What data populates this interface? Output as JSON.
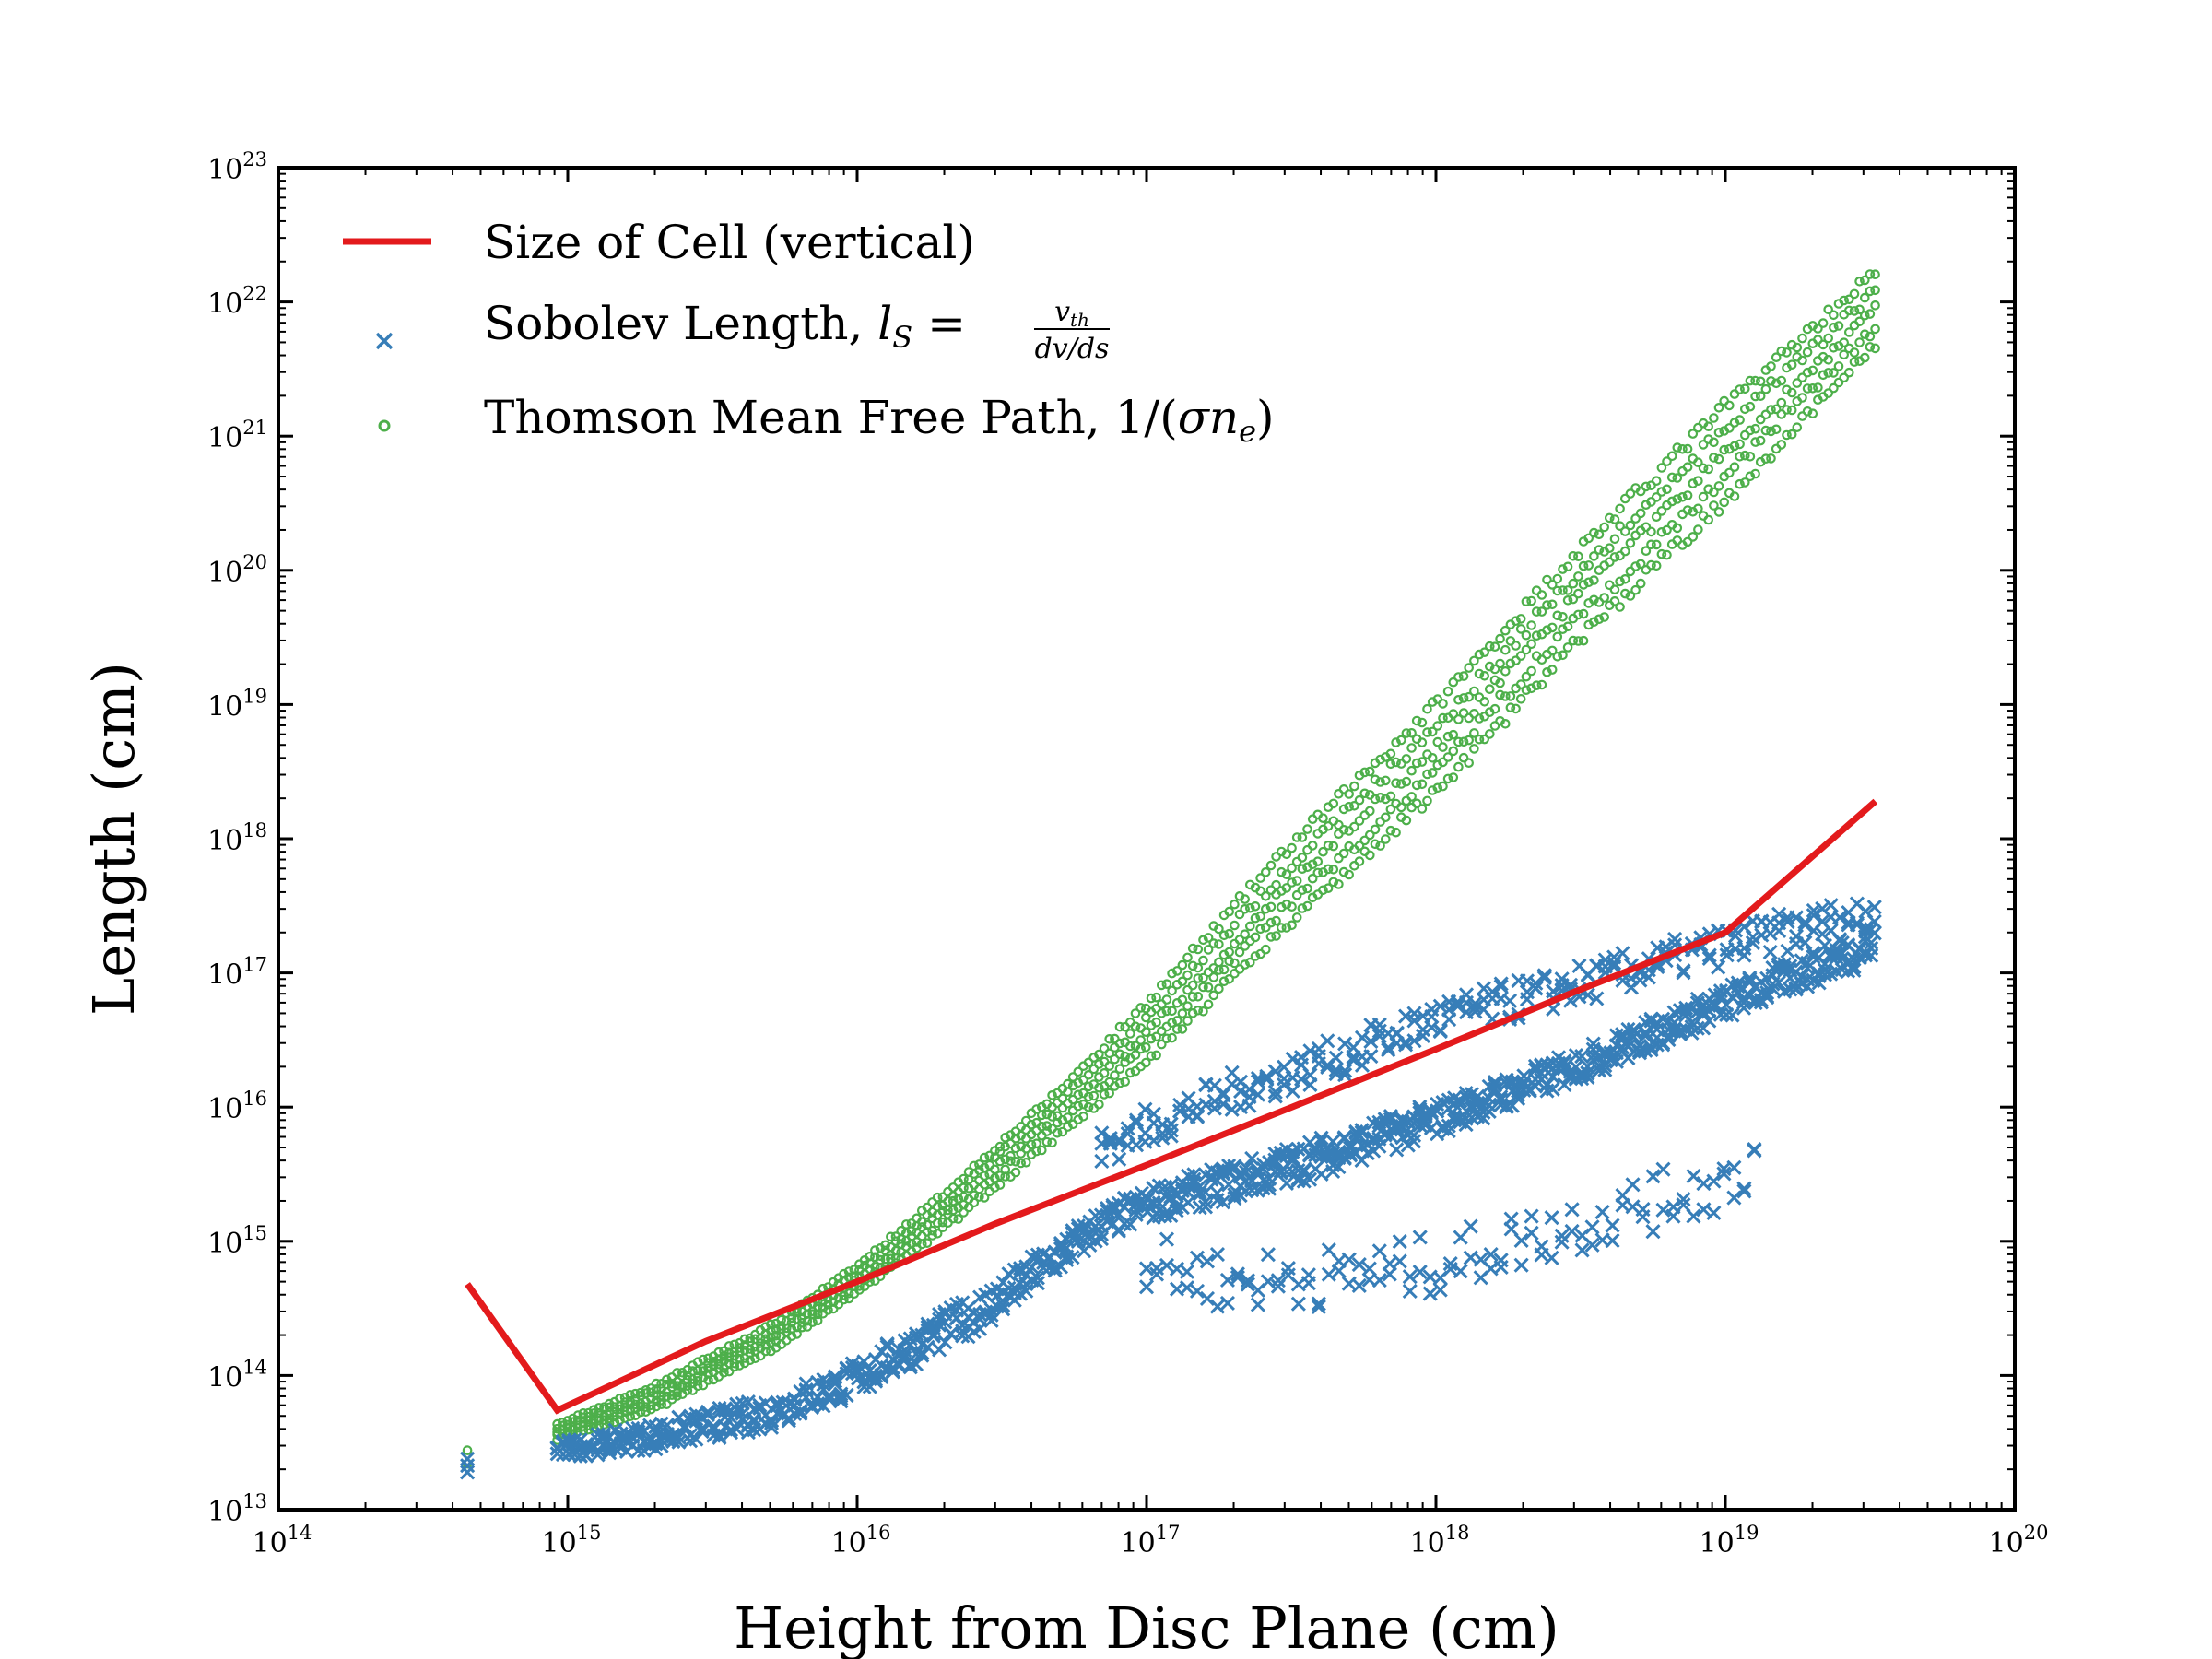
{
  "chart_data": {
    "type": "scatter",
    "xlabel": "Height from Disc Plane (cm)",
    "ylabel": "Length (cm)",
    "xscale": "log",
    "yscale": "log",
    "xlim": [
      100000000000000.0,
      1e+20
    ],
    "ylim": [
      10000000000000.0,
      1e+23
    ],
    "x_ticks": [
      {
        "base": "10",
        "exp": "14"
      },
      {
        "base": "10",
        "exp": "15"
      },
      {
        "base": "10",
        "exp": "16"
      },
      {
        "base": "10",
        "exp": "17"
      },
      {
        "base": "10",
        "exp": "18"
      },
      {
        "base": "10",
        "exp": "19"
      },
      {
        "base": "10",
        "exp": "20"
      }
    ],
    "y_ticks": [
      {
        "base": "10",
        "exp": "13"
      },
      {
        "base": "10",
        "exp": "14"
      },
      {
        "base": "10",
        "exp": "15"
      },
      {
        "base": "10",
        "exp": "16"
      },
      {
        "base": "10",
        "exp": "17"
      },
      {
        "base": "10",
        "exp": "18"
      },
      {
        "base": "10",
        "exp": "19"
      },
      {
        "base": "10",
        "exp": "20"
      },
      {
        "base": "10",
        "exp": "21"
      },
      {
        "base": "10",
        "exp": "22"
      },
      {
        "base": "10",
        "exp": "23"
      }
    ],
    "grid": false,
    "legend_position": "top-left",
    "legend": {
      "cell": "Size of Cell (vertical)",
      "sobolev_prefix": "Sobolev Length, ",
      "sobolev_lhs": "l",
      "sobolev_sub": "S",
      "sobolev_eq": " = ",
      "sobolev_num": "v",
      "sobolev_num_sub": "th",
      "sobolev_den": "dv/ds",
      "thomson_prefix": "Thomson Mean Free Path, 1/(",
      "thomson_sigma": "σn",
      "thomson_sub": "e",
      "thomson_suffix": ")"
    },
    "series": [
      {
        "name": "Size of Cell (vertical)",
        "type": "line",
        "color": "#e31a1c",
        "x": [
          450000000000000.0,
          920000000000000.0,
          3000000000000000.0,
          1e+16,
          3e+16,
          1e+17,
          3e+17,
          1e+18,
          3e+18,
          1e+19,
          3.3e+19
        ],
        "y": [
          480000000000000.0,
          55000000000000.0,
          180000000000000.0,
          500000000000000.0,
          1350000000000000.0,
          3700000000000000.0,
          9500000000000000.0,
          2.7e+16,
          7.2e+16,
          2e+17,
          1.9e+18
        ]
      },
      {
        "name": "Sobolev Length",
        "type": "scatter",
        "marker": "x",
        "color": "#377eb8",
        "x": [
          450000000000000.0,
          920000000000000.0,
          2000000000000000.0,
          5000000000000000.0,
          1e+16,
          3e+16,
          7e+16,
          1e+17,
          3e+17,
          1e+18,
          3e+18,
          1e+19,
          3.3e+19
        ],
        "y_low": [
          19000000000000.0,
          24000000000000.0,
          28000000000000.0,
          40000000000000.0,
          70000000000000.0,
          250000000000000.0,
          1000000000000000.0,
          1400000000000000.0,
          2500000000000000.0,
          6000000000000000.0,
          1.5e+16,
          4.5e+16,
          1.2e+17
        ],
        "y_high": [
          24000000000000.0,
          32000000000000.0,
          45000000000000.0,
          70000000000000.0,
          130000000000000.0,
          500000000000000.0,
          1800000000000000.0,
          2500000000000000.0,
          5000000000000000.0,
          1.1e+16,
          2.6e+16,
          8e+16,
          2.3e+17
        ],
        "upper_branch_x": [
          7e+16,
          1e+17,
          2e+17,
          5e+17,
          1e+18,
          3e+18,
          1e+19,
          3.3e+19
        ],
        "upper_branch_y": [
          5000000000000000.0,
          7000000000000000.0,
          1.3e+16,
          2.5e+16,
          4.5e+16,
          8e+16,
          1.6e+17,
          2.8e+17
        ],
        "lower_branch_x": [
          1e+17,
          2e+17,
          5e+17,
          1e+18,
          3e+18,
          1e+19,
          1.3e+19
        ],
        "lower_branch_y": [
          600000000000000.0,
          450000000000000.0,
          500000000000000.0,
          600000000000000.0,
          1200000000000000.0,
          2500000000000000.0,
          4000000000000000.0
        ]
      },
      {
        "name": "Thomson Mean Free Path",
        "type": "scatter",
        "marker": "o",
        "color": "#4daf4a",
        "x": [
          450000000000000.0,
          920000000000000.0,
          2000000000000000.0,
          5000000000000000.0,
          1e+16,
          2e+16,
          5e+16,
          1e+17,
          3e+17,
          1e+18,
          3e+18,
          1e+19,
          3.3e+19
        ],
        "y_low": [
          22000000000000.0,
          33000000000000.0,
          55000000000000.0,
          150000000000000.0,
          400000000000000.0,
          1200000000000000.0,
          6000000000000000.0,
          2e+16,
          2e+17,
          2e+18,
          2.5e+19,
          3e+20,
          4.3e+21
        ],
        "y_high": [
          28000000000000.0,
          45000000000000.0,
          90000000000000.0,
          250000000000000.0,
          700000000000000.0,
          2500000000000000.0,
          1.5e+16,
          7e+16,
          1e+18,
          1.3e+19,
          1.7e+20,
          2.2e+21,
          2.1e+22
        ]
      }
    ]
  }
}
